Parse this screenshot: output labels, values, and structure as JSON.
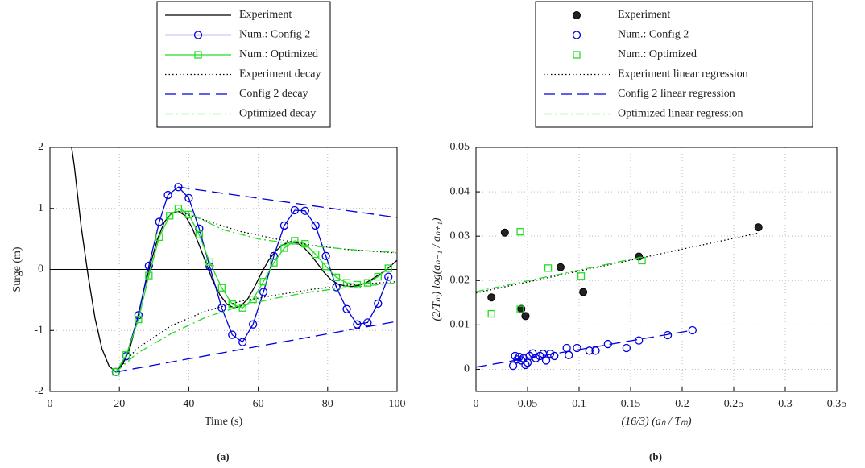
{
  "chart_data": [
    {
      "type": "line",
      "caption": "(a)",
      "xlabel": "Time (s)",
      "ylabel": "Surge (m)",
      "xlim": [
        0,
        100
      ],
      "ylim": [
        -2,
        2
      ],
      "xticks": [
        0,
        20,
        40,
        60,
        80,
        100
      ],
      "yticks": [
        -2,
        -1,
        0,
        1,
        2
      ],
      "grid": true,
      "zero_line": true,
      "series": [
        {
          "name": "Experiment",
          "color": "#000000",
          "linestyle": "solid",
          "x": [
            5,
            7,
            9,
            11,
            13,
            15,
            17,
            19,
            21,
            23,
            25,
            27,
            29,
            31,
            33,
            35,
            37,
            39,
            41,
            43,
            45,
            47,
            49,
            51,
            53,
            55,
            57,
            59,
            61,
            63,
            65,
            67,
            69,
            71,
            73,
            75,
            77,
            79,
            81,
            83,
            85,
            87,
            89,
            91,
            93,
            95,
            97,
            99,
            100
          ],
          "values": [
            2.5,
            1.7,
            0.7,
            -0.1,
            -0.8,
            -1.3,
            -1.58,
            -1.68,
            -1.55,
            -1.3,
            -0.85,
            -0.35,
            0.1,
            0.5,
            0.78,
            0.92,
            0.95,
            0.88,
            0.68,
            0.4,
            0.1,
            -0.2,
            -0.42,
            -0.57,
            -0.63,
            -0.6,
            -0.48,
            -0.28,
            -0.05,
            0.15,
            0.3,
            0.4,
            0.45,
            0.44,
            0.37,
            0.25,
            0.1,
            -0.05,
            -0.17,
            -0.24,
            -0.27,
            -0.28,
            -0.26,
            -0.22,
            -0.15,
            -0.08,
            0,
            0.1,
            0.15
          ]
        },
        {
          "name": "Num.: Config 2",
          "color": "#0000dd",
          "linestyle": "solid",
          "marker": "circle",
          "x": [
            19,
            22,
            25.5,
            28.5,
            31.5,
            34,
            37,
            40,
            43,
            46,
            49.5,
            52.5,
            55.5,
            58.5,
            61.5,
            64.5,
            67.5,
            70.5,
            73.5,
            76.5,
            79.5,
            82.5,
            85.5,
            88.5,
            91.5,
            94.5,
            97.5
          ],
          "values": [
            -1.68,
            -1.42,
            -0.75,
            0.06,
            0.78,
            1.22,
            1.35,
            1.17,
            0.67,
            0.05,
            -0.63,
            -1.07,
            -1.19,
            -0.9,
            -0.37,
            0.22,
            0.72,
            0.97,
            0.96,
            0.72,
            0.22,
            -0.29,
            -0.65,
            -0.9,
            -0.87,
            -0.56,
            -0.12
          ]
        },
        {
          "name": "Num.: Optimized",
          "color": "#22dd22",
          "linestyle": "solid",
          "marker": "square",
          "x": [
            19,
            22,
            25.5,
            28.5,
            31.5,
            34.5,
            37,
            40,
            43,
            46,
            49.5,
            52.5,
            55.5,
            58.5,
            61.5,
            64.5,
            67.5,
            70.5,
            73.5,
            76.5,
            79.5,
            82.5,
            85.5,
            88.5,
            91.5,
            94.5,
            97.5
          ],
          "values": [
            -1.68,
            -1.4,
            -0.82,
            -0.1,
            0.53,
            0.88,
            1.0,
            0.9,
            0.57,
            0.12,
            -0.3,
            -0.57,
            -0.63,
            -0.49,
            -0.2,
            0.11,
            0.35,
            0.47,
            0.42,
            0.25,
            0.05,
            -0.13,
            -0.22,
            -0.25,
            -0.22,
            -0.12,
            0.02
          ]
        },
        {
          "name": "Experiment decay",
          "color": "#000000",
          "linestyle": "dotted",
          "x": [
            37,
            45,
            55,
            65,
            75,
            85,
            100,
            null,
            19,
            25,
            35,
            45,
            55,
            65,
            75,
            85,
            100
          ],
          "values": [
            0.95,
            0.8,
            0.62,
            0.5,
            0.4,
            0.33,
            0.27,
            null,
            -1.68,
            -1.3,
            -0.92,
            -0.68,
            -0.52,
            -0.42,
            -0.33,
            -0.26,
            -0.2
          ]
        },
        {
          "name": "Config 2 decay",
          "color": "#0000dd",
          "linestyle": "dashed",
          "x": [
            37,
            100,
            null,
            19,
            100
          ],
          "values": [
            1.35,
            0.85,
            null,
            -1.68,
            -0.85
          ]
        },
        {
          "name": "Optimized decay",
          "color": "#22dd22",
          "linestyle": "dashdot",
          "x": [
            37,
            50,
            60,
            70,
            80,
            90,
            100,
            null,
            19,
            25,
            35,
            45,
            55,
            65,
            75,
            85,
            100
          ],
          "values": [
            1.0,
            0.65,
            0.5,
            0.42,
            0.36,
            0.31,
            0.28,
            null,
            -1.68,
            -1.38,
            -1.05,
            -0.78,
            -0.6,
            -0.47,
            -0.37,
            -0.3,
            -0.22
          ]
        }
      ]
    },
    {
      "type": "scatter",
      "caption": "(b)",
      "xlabel": "(16/3) (aₙ / Tₘ)",
      "ylabel": "(2/Tₘ) log(aₙ₋₁ / aₙ₊₁)",
      "xlim": [
        0,
        0.35
      ],
      "ylim": [
        -0.005,
        0.05
      ],
      "xticks": [
        0,
        0.05,
        0.1,
        0.15,
        0.2,
        0.25,
        0.3,
        0.35
      ],
      "yticks": [
        0,
        0.01,
        0.02,
        0.03,
        0.04,
        0.05
      ],
      "grid": true,
      "series": [
        {
          "name": "Experiment",
          "color": "#000000",
          "marker": "dot",
          "x": [
            0.015,
            0.028,
            0.044,
            0.048,
            0.082,
            0.104,
            0.158,
            0.274
          ],
          "values": [
            0.0162,
            0.0308,
            0.0136,
            0.012,
            0.023,
            0.0174,
            0.0254,
            0.032
          ]
        },
        {
          "name": "Num.: Config 2",
          "color": "#0000dd",
          "marker": "circle",
          "x": [
            0.036,
            0.038,
            0.04,
            0.042,
            0.044,
            0.046,
            0.048,
            0.05,
            0.052,
            0.055,
            0.058,
            0.062,
            0.065,
            0.068,
            0.072,
            0.076,
            0.088,
            0.09,
            0.098,
            0.11,
            0.116,
            0.128,
            0.146,
            0.158,
            0.186,
            0.21
          ],
          "values": [
            0.0008,
            0.003,
            0.0022,
            0.0028,
            0.002,
            0.0025,
            0.001,
            0.0015,
            0.003,
            0.0036,
            0.0025,
            0.003,
            0.0035,
            0.002,
            0.0035,
            0.003,
            0.0048,
            0.0032,
            0.0048,
            0.0042,
            0.0042,
            0.0057,
            0.0048,
            0.0065,
            0.0077,
            0.0088
          ]
        },
        {
          "name": "Num.: Optimized",
          "color": "#22dd22",
          "marker": "square",
          "x": [
            0.015,
            0.043,
            0.043,
            0.07,
            0.102,
            0.161
          ],
          "values": [
            0.0125,
            0.031,
            0.0135,
            0.0228,
            0.021,
            0.0245
          ]
        },
        {
          "name": "Experiment linear regression",
          "color": "#000000",
          "linestyle": "dotted",
          "x": [
            0,
            0.274
          ],
          "values": [
            0.0172,
            0.0307
          ]
        },
        {
          "name": "Config 2 linear regression",
          "color": "#0000dd",
          "linestyle": "dashed",
          "x": [
            0,
            0.21
          ],
          "values": [
            0.0005,
            0.0088
          ]
        },
        {
          "name": "Optimized linear regression",
          "color": "#22dd22",
          "linestyle": "dashdot",
          "x": [
            0,
            0.161
          ],
          "values": [
            0.0175,
            0.0253
          ]
        }
      ]
    }
  ]
}
